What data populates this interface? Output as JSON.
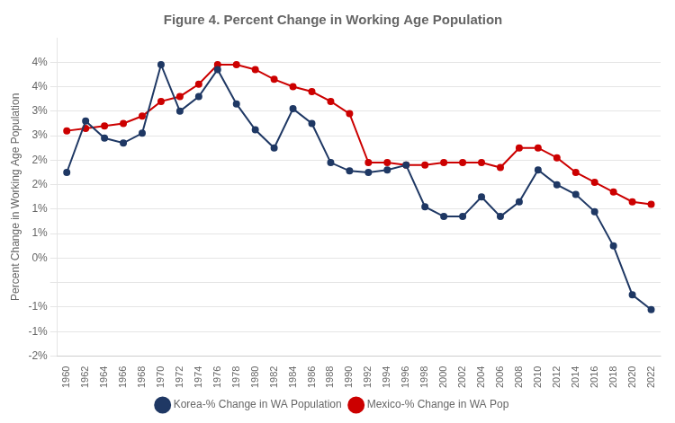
{
  "chart_data": {
    "type": "line",
    "title": "Figure 4. Percent Change in Working Age Population",
    "ylabel": "Percent Change in Working Age Population",
    "xlim": [
      1959,
      2023
    ],
    "xticks": [
      1960,
      1962,
      1964,
      1966,
      1968,
      1970,
      1972,
      1974,
      1976,
      1978,
      1980,
      1982,
      1984,
      1986,
      1988,
      1990,
      1992,
      1994,
      1996,
      1998,
      2000,
      2002,
      2004,
      2006,
      2008,
      2010,
      2012,
      2014,
      2016,
      2018,
      2020,
      2022
    ],
    "ylim": [
      -2.0,
      4.5
    ],
    "yticks": [
      {
        "value": 4.0,
        "label": "4%"
      },
      {
        "value": 3.5,
        "label": "4%"
      },
      {
        "value": 3.0,
        "label": "3%"
      },
      {
        "value": 2.5,
        "label": "3%"
      },
      {
        "value": 2.0,
        "label": "2%"
      },
      {
        "value": 1.5,
        "label": "2%"
      },
      {
        "value": 1.0,
        "label": "1%"
      },
      {
        "value": 0.5,
        "label": "1%"
      },
      {
        "value": 0.0,
        "label": "0%"
      },
      {
        "value": -0.5,
        "label": ""
      },
      {
        "value": -1.0,
        "label": "-1%"
      },
      {
        "value": -1.5,
        "label": "-1%"
      },
      {
        "value": -2.0,
        "label": "-2%"
      }
    ],
    "x": [
      1960,
      1962,
      1964,
      1966,
      1968,
      1970,
      1972,
      1974,
      1976,
      1978,
      1980,
      1982,
      1984,
      1986,
      1988,
      1990,
      1992,
      1994,
      1996,
      1998,
      2000,
      2002,
      2004,
      2006,
      2008,
      2010,
      2012,
      2014,
      2016,
      2018,
      2020,
      2022
    ],
    "series": [
      {
        "name": "Korea-% Change in WA Population",
        "color": "#1f3864",
        "values": [
          1.75,
          2.8,
          2.45,
          2.35,
          2.55,
          3.95,
          3.0,
          3.3,
          3.85,
          3.15,
          2.62,
          2.25,
          3.05,
          2.75,
          1.95,
          1.78,
          1.75,
          1.8,
          1.9,
          1.05,
          0.85,
          0.85,
          1.25,
          0.85,
          1.15,
          1.8,
          1.5,
          1.3,
          0.95,
          0.25,
          -0.75,
          -1.05
        ]
      },
      {
        "name": "Mexico-% Change in WA Pop",
        "color": "#cc0000",
        "values": [
          2.6,
          2.65,
          2.7,
          2.75,
          2.9,
          3.2,
          3.3,
          3.55,
          3.95,
          3.95,
          3.85,
          3.65,
          3.5,
          3.4,
          3.2,
          2.95,
          1.95,
          1.95,
          1.9,
          1.9,
          1.95,
          1.95,
          1.95,
          1.85,
          2.25,
          2.25,
          2.05,
          1.75,
          1.55,
          1.35,
          1.15,
          1.1
        ]
      }
    ],
    "marker": "circle",
    "grid": "y",
    "legend": "bottom"
  }
}
